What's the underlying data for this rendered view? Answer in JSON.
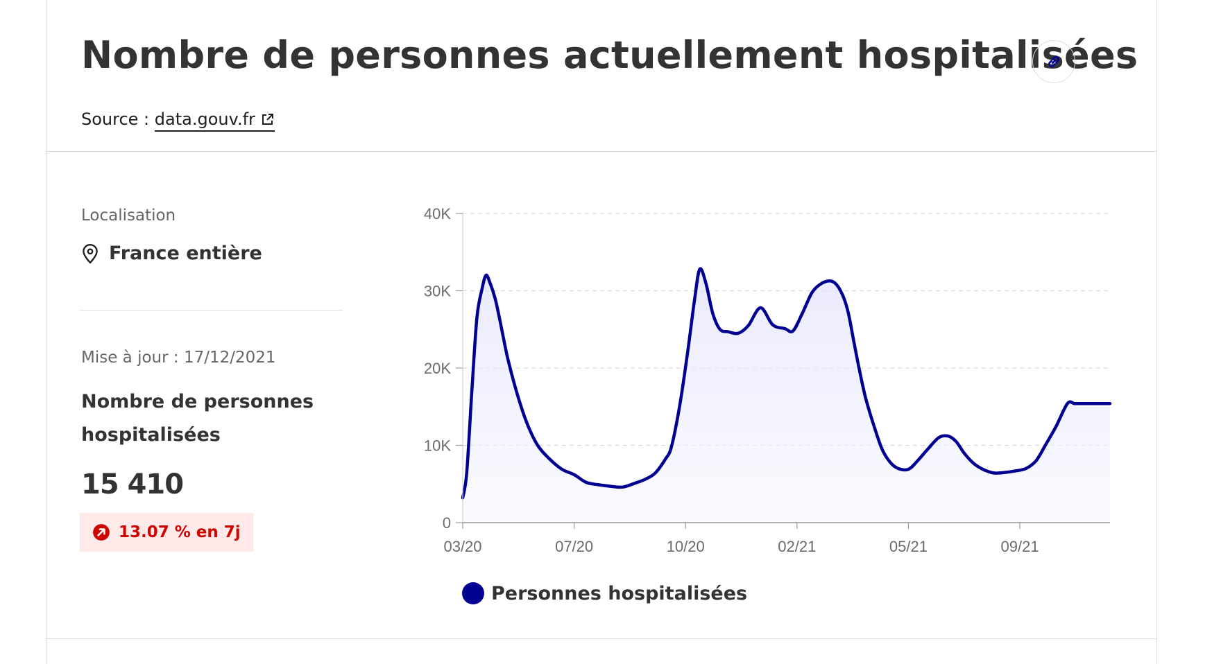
{
  "header": {
    "title": "Nombre de personnes actuellement hospitalisées",
    "source_prefix": "Source : ",
    "source_link": "data.gouv.fr"
  },
  "sidebar": {
    "location_label": "Localisation",
    "location_value": "France entière",
    "update_label": "Mise à jour : 17/12/2021",
    "metric_label": "Nombre de personnes hospitalisées",
    "metric_value": "15 410",
    "trend": "13.07 % en 7j"
  },
  "colors": {
    "series": "#000091",
    "trend_text": "#ce0500",
    "trend_bg": "#ffe9e9",
    "fill_top": "#e3e3fd"
  },
  "icons": {
    "link": "link-icon",
    "external": "external-link-icon",
    "location": "map-pin-icon",
    "trend": "arrow-up-right-circle-icon"
  },
  "chart_data": {
    "type": "area",
    "title": "",
    "xlabel": "",
    "ylabel": "",
    "ylim": [
      0,
      40000
    ],
    "yticks": [
      0,
      10000,
      20000,
      30000,
      40000
    ],
    "ytick_labels": [
      "0",
      "10K",
      "20K",
      "30K",
      "40K"
    ],
    "xlim": [
      "2020-03-18",
      "2021-12-17"
    ],
    "xticks": [
      "2020-03-18",
      "2020-07-06",
      "2020-10-24",
      "2021-02-11",
      "2021-06-01",
      "2021-09-19"
    ],
    "xtick_labels": [
      "03/20",
      "07/20",
      "10/20",
      "02/21",
      "05/21",
      "09/21"
    ],
    "grid": true,
    "legend_position": "bottom",
    "series": [
      {
        "name": "Personnes hospitalisées",
        "x": [
          "2020-03-18",
          "2020-03-22",
          "2020-03-27",
          "2020-04-01",
          "2020-04-06",
          "2020-04-10",
          "2020-04-14",
          "2020-04-19",
          "2020-04-24",
          "2020-05-01",
          "2020-05-10",
          "2020-05-20",
          "2020-05-31",
          "2020-06-12",
          "2020-06-24",
          "2020-07-06",
          "2020-07-18",
          "2020-07-30",
          "2020-08-11",
          "2020-08-23",
          "2020-09-04",
          "2020-09-14",
          "2020-09-24",
          "2020-10-04",
          "2020-10-10",
          "2020-10-18",
          "2020-10-26",
          "2020-11-02",
          "2020-11-07",
          "2020-11-13",
          "2020-11-20",
          "2020-11-27",
          "2020-12-05",
          "2020-12-15",
          "2020-12-25",
          "2021-01-06",
          "2021-01-18",
          "2021-01-30",
          "2021-02-07",
          "2021-02-16",
          "2021-02-26",
          "2021-03-08",
          "2021-03-18",
          "2021-03-26",
          "2021-04-02",
          "2021-04-08",
          "2021-04-14",
          "2021-04-20",
          "2021-04-28",
          "2021-05-06",
          "2021-05-14",
          "2021-05-22",
          "2021-06-01",
          "2021-06-10",
          "2021-06-20",
          "2021-07-01",
          "2021-07-10",
          "2021-07-18",
          "2021-07-26",
          "2021-08-04",
          "2021-08-12",
          "2021-08-19",
          "2021-08-26",
          "2021-09-05",
          "2021-09-15",
          "2021-09-25",
          "2021-10-05",
          "2021-10-15",
          "2021-10-25",
          "2021-11-05",
          "2021-11-12",
          "2021-11-19",
          "2021-11-26",
          "2021-12-03",
          "2021-12-10",
          "2021-12-17"
        ],
        "values": [
          3200,
          6500,
          17000,
          26500,
          30200,
          32000,
          31000,
          29000,
          26000,
          21500,
          17000,
          13000,
          10000,
          8200,
          6900,
          6200,
          5200,
          4900,
          4700,
          4600,
          5100,
          5600,
          6400,
          8200,
          9800,
          15000,
          22000,
          29000,
          32800,
          31000,
          27000,
          25000,
          24700,
          24500,
          25500,
          27800,
          25600,
          25100,
          24800,
          27000,
          29800,
          31000,
          31200,
          30000,
          27500,
          23500,
          19500,
          16000,
          12500,
          9500,
          7800,
          7000,
          6900,
          8000,
          9500,
          11000,
          11200,
          10500,
          9000,
          7700,
          7000,
          6600,
          6400,
          6500,
          6700,
          7000,
          8000,
          10200,
          12500,
          15410,
          15410,
          15410,
          15410,
          15410,
          15410,
          15410
        ]
      }
    ]
  }
}
